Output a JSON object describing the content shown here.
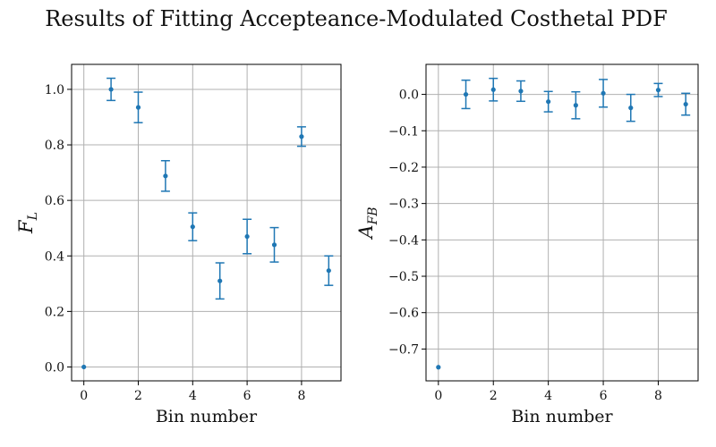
{
  "suptitle": "Results of Fitting Accepteance-Modulated Costhetal PDF",
  "colors": {
    "series": "#1f77b4",
    "grid": "#b0b0b0",
    "frame": "#000000"
  },
  "chart_data": [
    {
      "type": "scatter",
      "xlabel": "Bin number",
      "ylabel": "F_L",
      "ylabel_main": "F",
      "ylabel_sub": "L",
      "grid": true,
      "xlim": [
        -0.45,
        9.45
      ],
      "ylim": [
        -0.05,
        1.09
      ],
      "xticks": [
        0,
        2,
        4,
        6,
        8
      ],
      "xtick_labels": [
        "0",
        "2",
        "4",
        "6",
        "8"
      ],
      "yticks": [
        0.0,
        0.2,
        0.4,
        0.6,
        0.8,
        1.0
      ],
      "ytick_labels": [
        "0.0",
        "0.2",
        "0.4",
        "0.6",
        "0.8",
        "1.0"
      ],
      "x": [
        0,
        1,
        2,
        3,
        4,
        5,
        6,
        7,
        8,
        9
      ],
      "y": [
        0.0,
        1.0,
        0.935,
        0.688,
        0.505,
        0.31,
        0.47,
        0.44,
        0.83,
        0.347
      ],
      "yerr": [
        null,
        0.04,
        0.055,
        0.055,
        0.05,
        0.065,
        0.062,
        0.062,
        0.035,
        0.053
      ]
    },
    {
      "type": "scatter",
      "xlabel": "Bin number",
      "ylabel": "A_FB",
      "ylabel_main": "A",
      "ylabel_sub": "FB",
      "grid": true,
      "xlim": [
        -0.45,
        9.45
      ],
      "ylim": [
        -0.7875,
        0.0825
      ],
      "xticks": [
        0,
        2,
        4,
        6,
        8
      ],
      "xtick_labels": [
        "0",
        "2",
        "4",
        "6",
        "8"
      ],
      "yticks": [
        0.0,
        -0.1,
        -0.2,
        -0.3,
        -0.4,
        -0.5,
        -0.6,
        -0.7
      ],
      "ytick_labels": [
        "0.0",
        "−0.1",
        "−0.2",
        "−0.3",
        "−0.4",
        "−0.5",
        "−0.6",
        "−0.7"
      ],
      "x": [
        0,
        1,
        2,
        3,
        4,
        5,
        6,
        7,
        8,
        9
      ],
      "y": [
        -0.75,
        0.0,
        0.013,
        0.009,
        -0.02,
        -0.03,
        0.003,
        -0.037,
        0.012,
        -0.027
      ],
      "yerr": [
        null,
        0.039,
        0.031,
        0.028,
        0.028,
        0.037,
        0.038,
        0.037,
        0.018,
        0.03
      ]
    }
  ]
}
